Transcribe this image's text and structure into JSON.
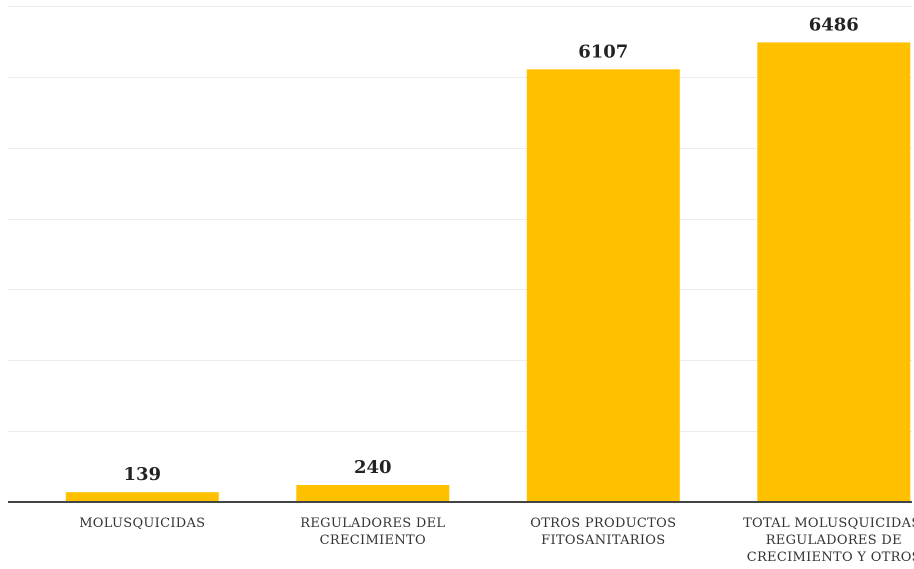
{
  "chart_data": {
    "type": "bar",
    "categories": [
      [
        "MOLUSQUICIDAS"
      ],
      [
        "REGULADORES DEL",
        "CRECIMIENTO"
      ],
      [
        "OTROS PRODUCTOS",
        "FITOSANITARIOS"
      ],
      [
        "TOTAL MOLUSQUICIDAS,",
        "REGULADORES DE",
        "CRECIMIENTO Y OTROS"
      ]
    ],
    "values": [
      139,
      240,
      6107,
      6486
    ],
    "data_labels": [
      "139",
      "240",
      "6107",
      "6486"
    ],
    "title": "",
    "xlabel": "",
    "ylabel": "",
    "ylim": [
      0,
      7000
    ],
    "grid": true,
    "legend": "none",
    "bar_color": "#FFC000"
  }
}
